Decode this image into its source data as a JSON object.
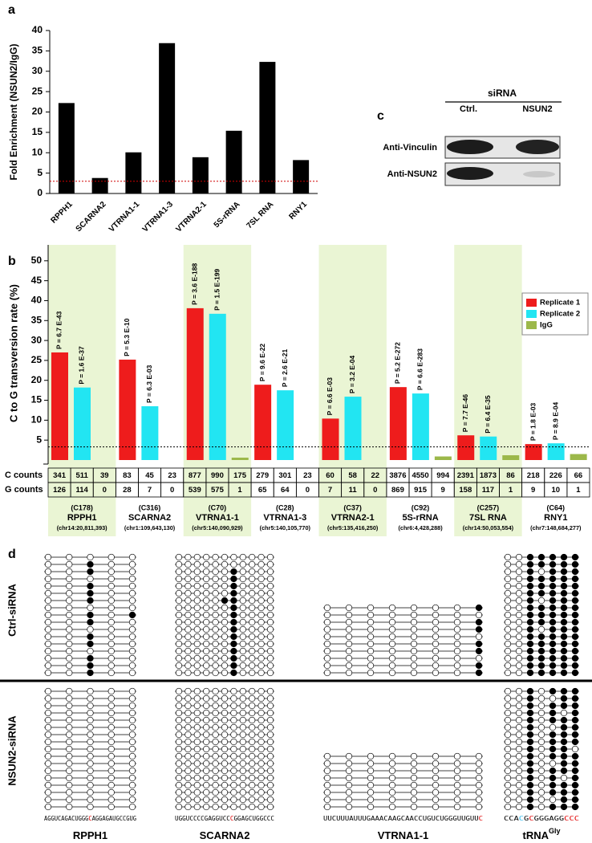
{
  "chart_data": [
    {
      "type": "bar",
      "panel": "a",
      "ylabel": "Fold Enrichment (NSUN2/IgG)",
      "categories": [
        "RPPH1",
        "SCARNA2",
        "VTRNA1-1",
        "VTRNA1-3",
        "VTRNA2-1",
        "5S-rRNA",
        "7SL RNA",
        "RNY1"
      ],
      "values": [
        22.2,
        3.8,
        10.1,
        36.9,
        8.9,
        15.4,
        32.3,
        8.2
      ],
      "color": "#000000",
      "ylim": [
        0,
        40
      ],
      "yticks": [
        0,
        5,
        10,
        15,
        20,
        25,
        30,
        35,
        40
      ],
      "threshold": 3,
      "threshold_color": "#d00000"
    },
    {
      "type": "grouped_bar",
      "panel": "b",
      "ylabel": "C to G transversion rate (%)",
      "categories": [
        "RPPH1",
        "SCARNA2",
        "VTRNA1-1",
        "VTRNA1-3",
        "VTRNA2-1",
        "5S-rRNA",
        "7SL RNA",
        "RNY1"
      ],
      "series": [
        {
          "name": "Replicate 1",
          "color": "#ee1c1c",
          "values": [
            27.0,
            25.2,
            38.1,
            18.9,
            10.4,
            18.3,
            6.2,
            4.0
          ],
          "annotations": [
            "P = 6.7 E-43",
            "P = 5.3 E-10",
            "P = 3.6 E-188",
            "P = 9.6 E-22",
            "P = 6.6 E-03",
            "P = 5.2 E-272",
            "P = 7.7 E-46",
            "P = 1.8 E-03"
          ]
        },
        {
          "name": "Replicate 2",
          "color": "#22e5f2",
          "values": [
            18.2,
            13.5,
            36.7,
            17.5,
            15.9,
            16.7,
            5.9,
            4.2
          ],
          "annotations": [
            "P = 1.6 E-37",
            "P = 6.3 E-03",
            "P = 1.5 E-199",
            "P = 2.6 E-21",
            "P = 3.2 E-04",
            "P = 6.6 E-283",
            "P = 6.4 E-35",
            "P = 8.9 E-04"
          ]
        },
        {
          "name": "IgG",
          "color": "#9cb84a",
          "values": [
            0,
            0,
            0.6,
            0,
            0,
            0.9,
            1.2,
            1.5
          ]
        }
      ],
      "ylim": [
        0,
        55
      ],
      "yticks": [
        5,
        10,
        15,
        20,
        25,
        30,
        35,
        40,
        45,
        50
      ],
      "threshold": 3.3,
      "legend": "upper right",
      "shade_color": "#eaf5d4",
      "sites": [
        {
          "position": "(C178)",
          "coordinates": "(chr14:20,811,393)"
        },
        {
          "position": "(C316)",
          "coordinates": "(chr1:109,643,130)"
        },
        {
          "position": "(C70)",
          "coordinates": "(chr5:140,090,929)"
        },
        {
          "position": "(C28)",
          "coordinates": "(chr5:140,105,770)"
        },
        {
          "position": "(C37)",
          "coordinates": "(chr5:135,416,250)"
        },
        {
          "position": "(C92)",
          "coordinates": "(chr6:4,428,288)"
        },
        {
          "position": "(C257)",
          "coordinates": "(chr14:50,053,554)"
        },
        {
          "position": "(C64)",
          "coordinates": "(chr7:148,684,277)"
        }
      ],
      "table": {
        "row_labels": [
          "C counts",
          "G counts"
        ],
        "rows": [
          [
            341,
            511,
            39,
            83,
            45,
            23,
            877,
            990,
            175,
            279,
            301,
            23,
            60,
            58,
            22,
            3876,
            4550,
            994,
            2391,
            1873,
            86,
            218,
            226,
            66
          ],
          [
            126,
            114,
            0,
            28,
            7,
            0,
            539,
            575,
            1,
            65,
            64,
            0,
            7,
            11,
            0,
            869,
            915,
            9,
            158,
            117,
            1,
            9,
            10,
            1
          ]
        ]
      }
    }
  ],
  "blot": {
    "panel": "c",
    "header": "siRNA",
    "lanes": [
      "Ctrl.",
      "NSUN2"
    ],
    "rows": [
      "Anti-Vinculin",
      "Anti-NSUN2"
    ]
  },
  "bisulfite": {
    "panel": "d",
    "conditions": [
      "Ctrl-siRNA",
      "NSUN2-siRNA"
    ],
    "genes": [
      {
        "label": "RPPH1",
        "sequence": [
          {
            "text": "AGGUCAGACUGGG",
            "color": "#000000"
          },
          {
            "text": "C",
            "color": "#e00000"
          },
          {
            "text": "AGGAGAUGCCGUG",
            "color": "#000000"
          }
        ],
        "patterns": [
          [
            "00000",
            "00100",
            "00100",
            "00000",
            "00100",
            "00100",
            "00100",
            "00000",
            "00101",
            "00100",
            "00000",
            "00100",
            "00100",
            "00000",
            "00100",
            "00100",
            "00100"
          ],
          [
            "00000",
            "00000",
            "00000",
            "00000",
            "00000",
            "00000",
            "00000",
            "00000",
            "00000",
            "00000",
            "00000",
            "00000",
            "00000",
            "00000",
            "00000",
            "00000",
            "00000"
          ]
        ]
      },
      {
        "label": "SCARNA2",
        "sequence": [
          {
            "text": "UGGUCCCCGAGGUCC",
            "color": "#000000"
          },
          {
            "text": "C",
            "color": "#e00000"
          },
          {
            "text": "GGAGCUGGCCC",
            "color": "#000000"
          }
        ],
        "patterns": [
          [
            "00000000000",
            "00000000000",
            "00000010000",
            "00000010000",
            "00000010000",
            "00000010000",
            "00000110000",
            "00000010000",
            "00000010000",
            "00000010000",
            "00000010000",
            "00000010000",
            "00000010000",
            "00000010000",
            "00000010000",
            "00000010000",
            "00000010000"
          ],
          [
            "00000000000",
            "00000000000",
            "00000000000",
            "00000000000",
            "00000000000",
            "00000000000",
            "00000000000",
            "00000000000",
            "00000000000",
            "00000000000",
            "00000000000",
            "00000000000",
            "00000000000",
            "00000000000",
            "00000000000",
            "00000000000",
            "00000000000"
          ]
        ]
      },
      {
        "label": "VTRNA1-1",
        "sequence": [
          {
            "text": "UUCUUUAUUUGAAACAAGCAACCUGUCUGGGUUGUU",
            "color": "#000000"
          },
          {
            "text": "C",
            "color": "#e00000"
          }
        ],
        "patterns": [
          [
            "00000001",
            "00000000",
            "00000001",
            "00000001",
            "00000000",
            "00000001",
            "00000001",
            "00000000",
            "00000001",
            "00000001"
          ],
          [
            "00000000",
            "00000000",
            "00000000",
            "00000000",
            "00000000",
            "00000000",
            "00000000",
            "00000000"
          ]
        ]
      },
      {
        "label": "tRNA",
        "label_sup": "Gly",
        "sequence": [
          {
            "text": "CCA",
            "color": "#000000"
          },
          {
            "text": "C",
            "color": "#33bbee"
          },
          {
            "text": "G",
            "color": "#000000"
          },
          {
            "text": "C",
            "color": "#e00000"
          },
          {
            "text": "GGGAGG",
            "color": "#000000"
          },
          {
            "text": "CCC",
            "color": "#e00000"
          }
        ],
        "patterns": [
          [
            "0011111",
            "0011111",
            "0010111",
            "0011111",
            "0011111",
            "0011111",
            "0010111",
            "0011111",
            "0011111",
            "0011111",
            "0010111",
            "0011111",
            "0011111",
            "0011111",
            "0011111",
            "0011111",
            "0011111"
          ],
          [
            "0010111",
            "0010011",
            "0010111",
            "0010101",
            "0010111",
            "0010011",
            "0010111",
            "0010111",
            "0010110",
            "0010111",
            "0010011",
            "0010111",
            "0010101",
            "0010111",
            "0010111",
            "0010011",
            "0010111"
          ]
        ]
      }
    ]
  }
}
